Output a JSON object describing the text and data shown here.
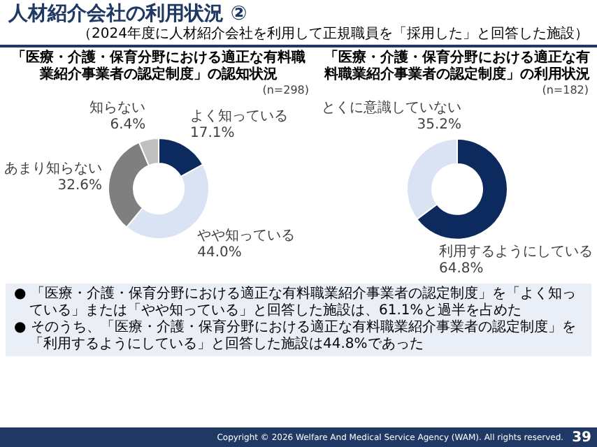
{
  "chart_data": [
    {
      "type": "donut",
      "title": "「医療・介護・保育分野における適正な有料職業紹介事業者の認定制度」の認知状況",
      "categories": [
        "よく知っている",
        "やや知っている",
        "あまり知らない",
        "知らない"
      ],
      "values": [
        17.1,
        44.0,
        32.6,
        6.4
      ],
      "value_labels": [
        "17.1%",
        "44.0%",
        "32.6%",
        "6.4%"
      ],
      "colors": [
        "#0d2a5e",
        "#dae3f3",
        "#7f7f7f",
        "#bfbfbf"
      ],
      "annotations": [
        "(n=298)",
        "人材紹介会社の利用状況 ②",
        "（2024年度に人材紹介会社を利用して正規職員を「採用した」と回答した施設）",
        "● 「医療・介護・保育分野における適正な有料職業紹介事業者の認定制度」を「よく知っている」または「やや知っている」と回答した施設は、61.1%と過半を占めた",
        "● そのうち、「医療・介護・保育分野における適正な有料職業紹介事業者の認定制度」を「利用するようにしている」と回答した施設は44.8%であった",
        "Copyright © 2026 Welfare And Medical Service Agency (WAM). All rights reserved.",
        "39"
      ]
    },
    {
      "type": "donut",
      "title": "「医療・介護・保育分野における適正な有料職業紹介事業者の認定制度」の利用状況",
      "categories": [
        "利用するようにしている",
        "とくに意識していない"
      ],
      "values": [
        64.8,
        35.2
      ],
      "value_labels": [
        "64.8%",
        "35.2%"
      ],
      "colors": [
        "#0d2a5e",
        "#dae3f3"
      ],
      "annotations": [
        "(n=182)"
      ]
    }
  ]
}
